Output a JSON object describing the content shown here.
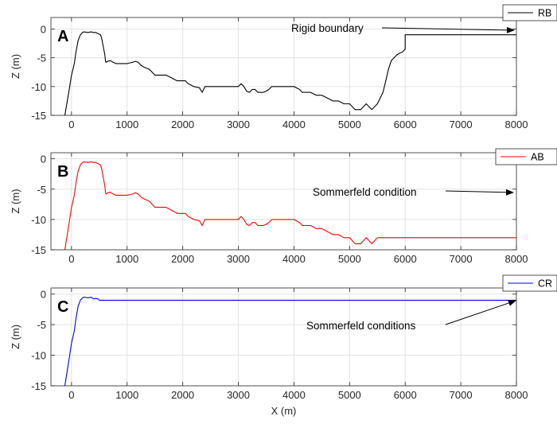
{
  "figure": {
    "xlabel": "X (m)"
  },
  "chart_data": [
    {
      "type": "line",
      "panel_label": "A",
      "legend": {
        "label": "RB",
        "color": "#000000",
        "placement": "top-right (clipped)"
      },
      "annotation": "Rigid boundary",
      "xlim": [
        -370,
        8000
      ],
      "ylim": [
        -15,
        2
      ],
      "xticks": [
        0,
        1000,
        2000,
        3000,
        4000,
        5000,
        6000,
        7000,
        8000
      ],
      "yticks": [
        0,
        -5,
        -10,
        -15
      ],
      "ylabel": "Z (m)",
      "grid": true,
      "series": [
        {
          "color": "#000000",
          "x": [
            -120,
            -50,
            0,
            50,
            80,
            120,
            160,
            200,
            220,
            300,
            350,
            400,
            430,
            480,
            520,
            540,
            560,
            580,
            600,
            610,
            620,
            650,
            700,
            750,
            800,
            900,
            1000,
            1100,
            1150,
            1200,
            1250,
            1300,
            1400,
            1500,
            1600,
            1700,
            1800,
            1900,
            2000,
            2050,
            2100,
            2200,
            2300,
            2350,
            2400,
            2500,
            2700,
            3000,
            3050,
            3100,
            3150,
            3200,
            3250,
            3300,
            3350,
            3450,
            3500,
            3550,
            3600,
            3700,
            3800,
            3900,
            4000,
            4100,
            4150,
            4200,
            4300,
            4400,
            4500,
            4600,
            4700,
            4800,
            4900,
            5000,
            5050,
            5100,
            5200,
            5250,
            5300,
            5350,
            5400,
            5450,
            5500,
            5550,
            5600,
            5650,
            5700,
            5750,
            5800,
            5850,
            5900,
            5950,
            6000,
            6000,
            6100,
            7000,
            8000
          ],
          "y": [
            -15,
            -11,
            -8,
            -6,
            -4,
            -2,
            -1,
            -0.6,
            -0.5,
            -0.6,
            -0.5,
            -0.6,
            -0.6,
            -0.8,
            -1,
            -1.5,
            -2.5,
            -3.5,
            -4.5,
            -5.5,
            -5.8,
            -5.6,
            -5.5,
            -5.8,
            -6,
            -6,
            -6,
            -5.8,
            -5.6,
            -5.8,
            -6.3,
            -6.6,
            -7,
            -8,
            -8,
            -8,
            -8.5,
            -9,
            -9,
            -9,
            -9.5,
            -10,
            -10.2,
            -11,
            -10,
            -10,
            -10,
            -10,
            -9.5,
            -10,
            -10.8,
            -11,
            -10.5,
            -10.5,
            -11,
            -11,
            -10.8,
            -10.5,
            -10,
            -10,
            -10,
            -10,
            -10,
            -10.5,
            -11,
            -11,
            -11,
            -11.5,
            -11.5,
            -12,
            -12.5,
            -12.5,
            -13,
            -13,
            -13.5,
            -14,
            -14,
            -13.5,
            -13,
            -13.5,
            -14,
            -13.5,
            -13,
            -12,
            -11,
            -9,
            -7,
            -5.5,
            -5,
            -4.5,
            -4.2,
            -4,
            -3.5,
            -1,
            -1,
            -1,
            -1
          ]
        }
      ]
    },
    {
      "type": "line",
      "panel_label": "B",
      "legend": {
        "label": "AB",
        "color": "#ff0000",
        "placement": "top-right (clipped)"
      },
      "annotation": "Sommerfeld condition",
      "xlim": [
        -370,
        8000
      ],
      "ylim": [
        -15,
        1
      ],
      "xticks": [
        0,
        1000,
        2000,
        3000,
        4000,
        5000,
        6000,
        7000,
        8000
      ],
      "yticks": [
        0,
        -5,
        -10,
        -15
      ],
      "ylabel": "Z (m)",
      "grid": true,
      "series": [
        {
          "color": "#ff0000",
          "x": [
            -120,
            -50,
            0,
            50,
            80,
            120,
            160,
            200,
            220,
            300,
            350,
            400,
            430,
            480,
            520,
            540,
            560,
            580,
            600,
            610,
            620,
            650,
            700,
            750,
            800,
            900,
            1000,
            1100,
            1150,
            1200,
            1250,
            1300,
            1400,
            1500,
            1600,
            1700,
            1800,
            1900,
            2000,
            2050,
            2100,
            2200,
            2300,
            2350,
            2400,
            2500,
            2700,
            3000,
            3050,
            3100,
            3150,
            3200,
            3250,
            3300,
            3350,
            3450,
            3500,
            3550,
            3600,
            3700,
            3800,
            3900,
            4000,
            4100,
            4150,
            4200,
            4300,
            4400,
            4500,
            4600,
            4700,
            4800,
            4900,
            5000,
            5050,
            5100,
            5200,
            5250,
            5300,
            5350,
            5400,
            5450,
            5500,
            6000,
            7000,
            8000
          ],
          "y": [
            -15,
            -11,
            -8,
            -6,
            -4,
            -2,
            -1,
            -0.6,
            -0.5,
            -0.6,
            -0.5,
            -0.6,
            -0.6,
            -0.8,
            -1,
            -1.5,
            -2.5,
            -3.5,
            -4.5,
            -5.5,
            -5.8,
            -5.6,
            -5.5,
            -5.8,
            -6,
            -6,
            -6,
            -5.8,
            -5.6,
            -5.8,
            -6.3,
            -6.6,
            -7,
            -8,
            -8,
            -8,
            -8.5,
            -9,
            -9,
            -9,
            -9.5,
            -10,
            -10.2,
            -11,
            -10,
            -10,
            -10,
            -10,
            -9.5,
            -10,
            -10.8,
            -11,
            -10.5,
            -10.5,
            -11,
            -11,
            -10.8,
            -10.5,
            -10,
            -10,
            -10,
            -10,
            -10,
            -10.5,
            -11,
            -11,
            -11,
            -11.5,
            -11.5,
            -12,
            -12.5,
            -12.5,
            -13,
            -13,
            -13.5,
            -14,
            -14,
            -13.5,
            -13,
            -13.5,
            -14,
            -13.5,
            -13,
            -13,
            -13,
            -13
          ]
        }
      ]
    },
    {
      "type": "line",
      "panel_label": "C",
      "legend": {
        "label": "CR",
        "color": "#0000ff",
        "placement": "top-right (clipped)"
      },
      "annotation": "Sommerfeld conditions",
      "xlim": [
        -370,
        8000
      ],
      "ylim": [
        -15,
        1
      ],
      "xticks": [
        0,
        1000,
        2000,
        3000,
        4000,
        5000,
        6000,
        7000,
        8000
      ],
      "yticks": [
        0,
        -5,
        -10,
        -15
      ],
      "ylabel": "Z (m)",
      "xlabel": "X (m)",
      "grid": true,
      "series": [
        {
          "color": "#0000ff",
          "x": [
            -120,
            -50,
            0,
            50,
            80,
            120,
            160,
            200,
            220,
            300,
            350,
            400,
            430,
            480,
            500,
            520,
            550,
            8000
          ],
          "y": [
            -15,
            -11,
            -8,
            -6,
            -4,
            -2,
            -1,
            -0.6,
            -0.5,
            -0.6,
            -0.5,
            -0.8,
            -0.7,
            -0.8,
            -1,
            -1,
            -1,
            -1
          ]
        }
      ]
    }
  ]
}
